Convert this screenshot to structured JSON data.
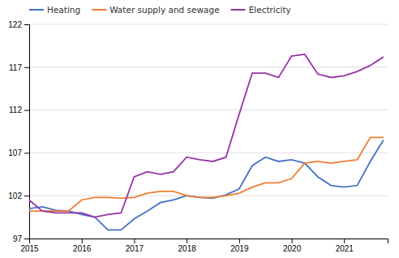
{
  "chart_data": {
    "type": "line",
    "x": [
      2015.0,
      2015.25,
      2015.5,
      2015.75,
      2016.0,
      2016.25,
      2016.5,
      2016.75,
      2017.0,
      2017.25,
      2017.5,
      2017.75,
      2018.0,
      2018.25,
      2018.5,
      2018.75,
      2019.0,
      2019.25,
      2019.5,
      2019.75,
      2020.0,
      2020.25,
      2020.5,
      2020.75,
      2021.0,
      2021.25,
      2021.5,
      2021.75
    ],
    "series": [
      {
        "name": "Heating",
        "color": "#4472C4",
        "values": [
          100.5,
          100.7,
          100.3,
          100.2,
          99.8,
          99.5,
          98.0,
          98.0,
          99.3,
          100.2,
          101.2,
          101.5,
          102.0,
          101.8,
          101.7,
          102.1,
          102.8,
          105.5,
          106.5,
          106.0,
          106.2,
          105.8,
          104.2,
          103.2,
          103.0,
          103.2,
          106.0,
          108.5
        ]
      },
      {
        "name": "Water supply and sewage",
        "color": "#ED7D31",
        "values": [
          100.2,
          100.2,
          100.2,
          100.2,
          101.5,
          101.8,
          101.8,
          101.7,
          101.8,
          102.3,
          102.5,
          102.5,
          102.0,
          101.8,
          101.8,
          102.0,
          102.3,
          103.0,
          103.5,
          103.5,
          104.0,
          105.8,
          106.0,
          105.8,
          106.0,
          106.2,
          108.8,
          108.8
        ]
      },
      {
        "name": "Electricity",
        "color": "#9933AA",
        "values": [
          101.5,
          100.2,
          100.0,
          100.0,
          100.0,
          99.5,
          99.8,
          100.0,
          104.2,
          104.8,
          104.5,
          104.8,
          106.5,
          106.2,
          106.0,
          106.5,
          111.5,
          116.3,
          116.3,
          115.8,
          118.3,
          118.5,
          116.2,
          115.8,
          116.0,
          116.5,
          117.2,
          118.2
        ]
      }
    ],
    "xlim": [
      2015.0,
      2021.83
    ],
    "ylim": [
      97,
      122
    ],
    "xticks": [
      2015,
      2016,
      2017,
      2018,
      2019,
      2020,
      2021
    ],
    "yticks": [
      97,
      102,
      107,
      112,
      117,
      122
    ],
    "grid": true,
    "legend": "top-left"
  }
}
